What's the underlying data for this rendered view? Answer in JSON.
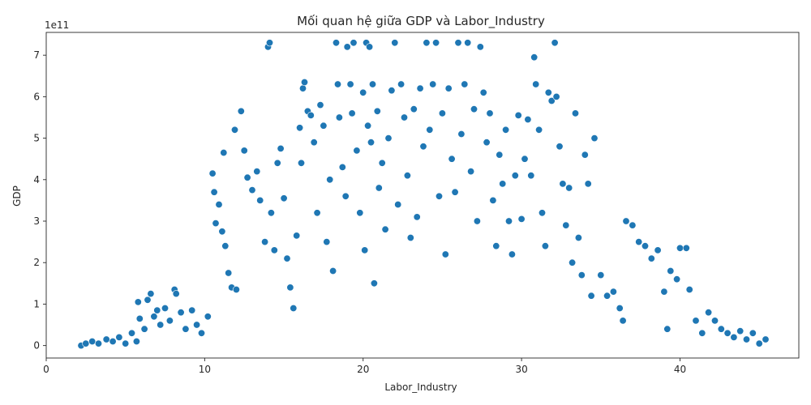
{
  "chart_data": {
    "type": "scatter",
    "title": "Mối quan hệ giữa GDP và Labor_Industry",
    "xlabel": "Labor_Industry",
    "ylabel": "GDP",
    "offset_label": "1e11",
    "xlim": [
      0,
      47.5
    ],
    "ylim": [
      -0.3,
      7.55
    ],
    "y_unit_multiplier": 100000000000.0,
    "x_ticks": [
      0,
      10,
      20,
      30,
      40
    ],
    "y_ticks": [
      0,
      1,
      2,
      3,
      4,
      5,
      6,
      7
    ],
    "grid": false,
    "legend": "none",
    "series": [
      {
        "marker_color": "#1f77b4",
        "marker_edge": "#ffffff",
        "points": [
          [
            2.2,
            0.0
          ],
          [
            2.5,
            0.05
          ],
          [
            2.9,
            0.1
          ],
          [
            3.3,
            0.05
          ],
          [
            3.8,
            0.15
          ],
          [
            4.2,
            0.1
          ],
          [
            4.6,
            0.2
          ],
          [
            5.0,
            0.05
          ],
          [
            5.4,
            0.3
          ],
          [
            5.7,
            0.1
          ],
          [
            5.8,
            1.05
          ],
          [
            5.9,
            0.65
          ],
          [
            6.2,
            0.4
          ],
          [
            6.4,
            1.1
          ],
          [
            6.6,
            1.25
          ],
          [
            6.8,
            0.7
          ],
          [
            7.0,
            0.85
          ],
          [
            7.2,
            0.5
          ],
          [
            7.5,
            0.9
          ],
          [
            7.8,
            0.6
          ],
          [
            8.1,
            1.35
          ],
          [
            8.2,
            1.25
          ],
          [
            8.5,
            0.8
          ],
          [
            8.8,
            0.4
          ],
          [
            9.2,
            0.85
          ],
          [
            9.5,
            0.5
          ],
          [
            9.8,
            0.3
          ],
          [
            10.2,
            0.7
          ],
          [
            10.5,
            4.15
          ],
          [
            10.6,
            3.7
          ],
          [
            10.7,
            2.95
          ],
          [
            10.9,
            3.4
          ],
          [
            11.1,
            2.75
          ],
          [
            11.2,
            4.65
          ],
          [
            11.3,
            2.4
          ],
          [
            11.5,
            1.75
          ],
          [
            11.7,
            1.4
          ],
          [
            11.9,
            5.2
          ],
          [
            12.0,
            1.35
          ],
          [
            12.3,
            5.65
          ],
          [
            12.5,
            4.7
          ],
          [
            12.7,
            4.05
          ],
          [
            13.0,
            3.75
          ],
          [
            13.3,
            4.2
          ],
          [
            13.5,
            3.5
          ],
          [
            13.8,
            2.5
          ],
          [
            14.0,
            7.2
          ],
          [
            14.1,
            7.3
          ],
          [
            14.2,
            3.2
          ],
          [
            14.4,
            2.3
          ],
          [
            14.6,
            4.4
          ],
          [
            14.8,
            4.75
          ],
          [
            15.0,
            3.55
          ],
          [
            15.2,
            2.1
          ],
          [
            15.4,
            1.4
          ],
          [
            15.6,
            0.9
          ],
          [
            15.8,
            2.65
          ],
          [
            16.0,
            5.25
          ],
          [
            16.1,
            4.4
          ],
          [
            16.2,
            6.2
          ],
          [
            16.3,
            6.35
          ],
          [
            16.5,
            5.65
          ],
          [
            16.7,
            5.55
          ],
          [
            16.9,
            4.9
          ],
          [
            17.1,
            3.2
          ],
          [
            17.3,
            5.8
          ],
          [
            17.5,
            5.3
          ],
          [
            17.7,
            2.5
          ],
          [
            17.9,
            4.0
          ],
          [
            18.1,
            1.8
          ],
          [
            18.3,
            7.3
          ],
          [
            18.4,
            6.3
          ],
          [
            18.5,
            5.5
          ],
          [
            18.7,
            4.3
          ],
          [
            18.9,
            3.6
          ],
          [
            19.0,
            7.2
          ],
          [
            19.2,
            6.3
          ],
          [
            19.3,
            5.6
          ],
          [
            19.4,
            7.3
          ],
          [
            19.6,
            4.7
          ],
          [
            19.8,
            3.2
          ],
          [
            20.0,
            6.1
          ],
          [
            20.1,
            2.3
          ],
          [
            20.2,
            7.3
          ],
          [
            20.3,
            5.3
          ],
          [
            20.4,
            7.2
          ],
          [
            20.5,
            4.9
          ],
          [
            20.6,
            6.3
          ],
          [
            20.7,
            1.5
          ],
          [
            20.9,
            5.65
          ],
          [
            21.0,
            3.8
          ],
          [
            21.2,
            4.4
          ],
          [
            21.4,
            2.8
          ],
          [
            21.6,
            5.0
          ],
          [
            21.8,
            6.15
          ],
          [
            22.0,
            7.3
          ],
          [
            22.2,
            3.4
          ],
          [
            22.4,
            6.3
          ],
          [
            22.6,
            5.5
          ],
          [
            22.8,
            4.1
          ],
          [
            23.0,
            2.6
          ],
          [
            23.2,
            5.7
          ],
          [
            23.4,
            3.1
          ],
          [
            23.6,
            6.2
          ],
          [
            23.8,
            4.8
          ],
          [
            24.0,
            7.3
          ],
          [
            24.2,
            5.2
          ],
          [
            24.4,
            6.3
          ],
          [
            24.6,
            7.3
          ],
          [
            24.8,
            3.6
          ],
          [
            25.0,
            5.6
          ],
          [
            25.2,
            2.2
          ],
          [
            25.4,
            6.2
          ],
          [
            25.6,
            4.5
          ],
          [
            25.8,
            3.7
          ],
          [
            26.0,
            7.3
          ],
          [
            26.2,
            5.1
          ],
          [
            26.4,
            6.3
          ],
          [
            26.6,
            7.3
          ],
          [
            26.8,
            4.2
          ],
          [
            27.0,
            5.7
          ],
          [
            27.2,
            3.0
          ],
          [
            27.4,
            7.2
          ],
          [
            27.6,
            6.1
          ],
          [
            27.8,
            4.9
          ],
          [
            28.0,
            5.6
          ],
          [
            28.2,
            3.5
          ],
          [
            28.4,
            2.4
          ],
          [
            28.6,
            4.6
          ],
          [
            28.8,
            3.9
          ],
          [
            29.0,
            5.2
          ],
          [
            29.2,
            3.0
          ],
          [
            29.4,
            2.2
          ],
          [
            29.6,
            4.1
          ],
          [
            29.8,
            5.55
          ],
          [
            30.0,
            3.05
          ],
          [
            30.2,
            4.5
          ],
          [
            30.4,
            5.45
          ],
          [
            30.6,
            4.1
          ],
          [
            30.8,
            6.95
          ],
          [
            30.9,
            6.3
          ],
          [
            31.1,
            5.2
          ],
          [
            31.3,
            3.2
          ],
          [
            31.5,
            2.4
          ],
          [
            31.7,
            6.1
          ],
          [
            31.9,
            5.9
          ],
          [
            32.1,
            7.3
          ],
          [
            32.2,
            6.0
          ],
          [
            32.4,
            4.8
          ],
          [
            32.6,
            3.9
          ],
          [
            32.8,
            2.9
          ],
          [
            33.0,
            3.8
          ],
          [
            33.2,
            2.0
          ],
          [
            33.4,
            5.6
          ],
          [
            33.6,
            2.6
          ],
          [
            33.8,
            1.7
          ],
          [
            34.0,
            4.6
          ],
          [
            34.2,
            3.9
          ],
          [
            34.4,
            1.2
          ],
          [
            34.6,
            5.0
          ],
          [
            35.0,
            1.7
          ],
          [
            35.4,
            1.2
          ],
          [
            35.8,
            1.3
          ],
          [
            36.2,
            0.9
          ],
          [
            36.6,
            3.0
          ],
          [
            37.0,
            2.9
          ],
          [
            37.4,
            2.5
          ],
          [
            37.8,
            2.4
          ],
          [
            38.2,
            2.1
          ],
          [
            38.6,
            2.3
          ],
          [
            39.0,
            1.3
          ],
          [
            39.4,
            1.8
          ],
          [
            39.8,
            1.6
          ],
          [
            40.0,
            2.35
          ],
          [
            40.4,
            2.35
          ],
          [
            40.6,
            1.35
          ],
          [
            41.0,
            0.6
          ],
          [
            41.4,
            0.3
          ],
          [
            41.8,
            0.8
          ],
          [
            42.2,
            0.6
          ],
          [
            42.6,
            0.4
          ],
          [
            43.0,
            0.3
          ],
          [
            43.4,
            0.2
          ],
          [
            43.8,
            0.35
          ],
          [
            44.2,
            0.15
          ],
          [
            44.6,
            0.3
          ],
          [
            45.4,
            0.15
          ],
          [
            45.0,
            0.05
          ],
          [
            39.2,
            0.4
          ],
          [
            36.4,
            0.6
          ]
        ]
      }
    ]
  }
}
